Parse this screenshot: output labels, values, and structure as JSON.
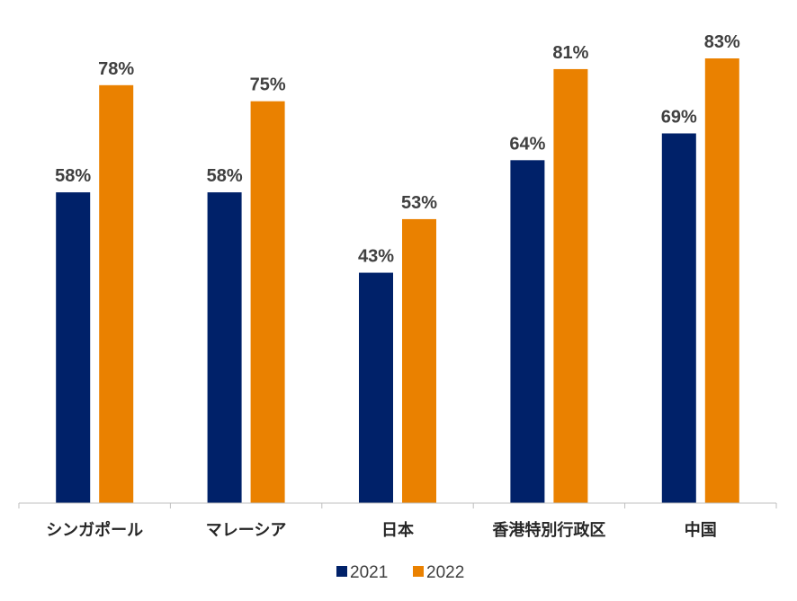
{
  "chart_data": {
    "type": "bar",
    "categories": [
      "シンガポール",
      "マレーシア",
      "日本",
      "香港特別行政区",
      "中国"
    ],
    "series": [
      {
        "name": "2021",
        "color": "#002169",
        "values": [
          58,
          58,
          43,
          64,
          69
        ]
      },
      {
        "name": "2022",
        "color": "#ea8100",
        "values": [
          78,
          75,
          53,
          81,
          83
        ]
      }
    ],
    "value_suffix": "%",
    "ylim": [
      0,
      83
    ],
    "grid": false,
    "legend_position": "bottom"
  }
}
